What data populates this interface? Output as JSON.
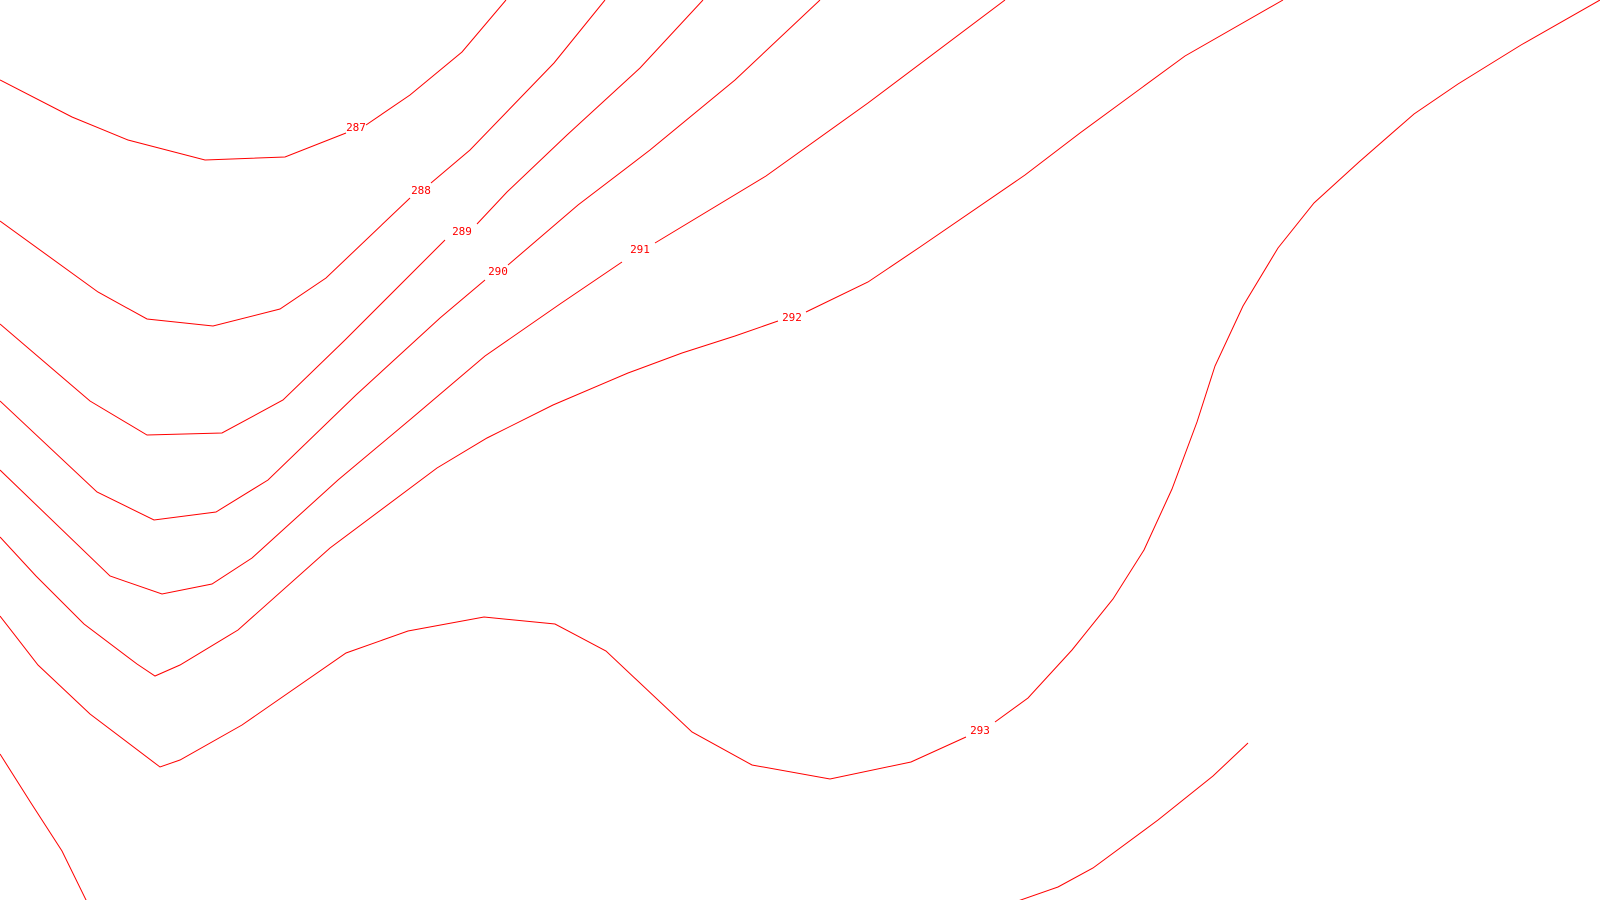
{
  "map": {
    "background_color": "#ffffff",
    "contour_color": "#ff0000",
    "contours": [
      {
        "id": "c287",
        "label": "287"
      },
      {
        "id": "c288",
        "label": "288"
      },
      {
        "id": "c289",
        "label": "289"
      },
      {
        "id": "c290",
        "label": "290"
      },
      {
        "id": "c291",
        "label": "291"
      },
      {
        "id": "c292",
        "label": "292"
      },
      {
        "id": "c293",
        "label": "293"
      },
      {
        "id": "c294",
        "label": ""
      }
    ]
  }
}
